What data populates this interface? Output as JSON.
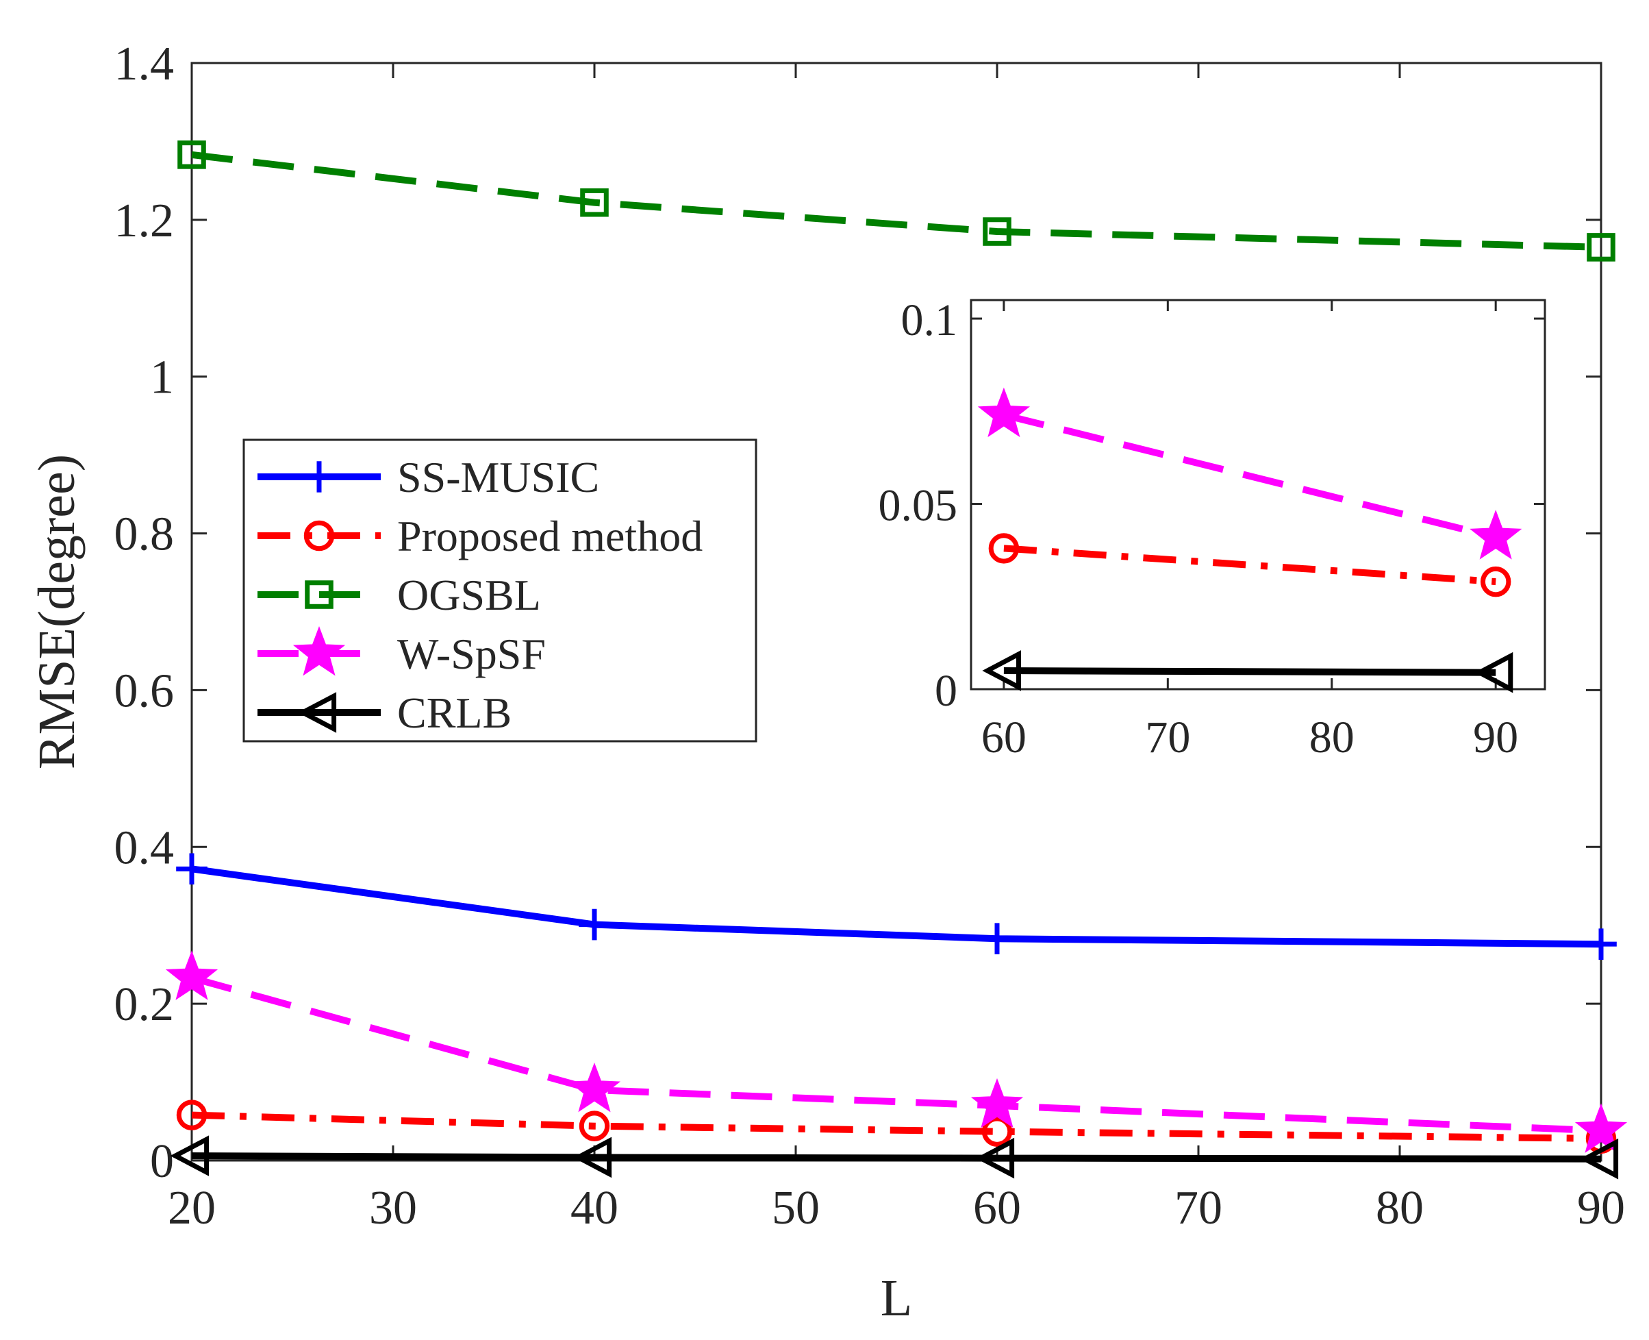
{
  "chart_data": [
    {
      "type": "line",
      "title": "",
      "xlabel": "L",
      "ylabel": "RMSE(degree)",
      "xlim": [
        20,
        90
      ],
      "ylim": [
        0,
        1.4
      ],
      "xticks": [
        20,
        30,
        40,
        50,
        60,
        70,
        80,
        90
      ],
      "yticks": [
        0,
        0.2,
        0.4,
        0.6,
        0.8,
        1,
        1.2,
        1.4
      ],
      "xtick_labels": [
        "20",
        "30",
        "40",
        "50",
        "60",
        "70",
        "80",
        "90"
      ],
      "ytick_labels": [
        "0",
        "0.2",
        "0.4",
        "0.6",
        "0.8",
        "1",
        "1.2",
        "1.4"
      ],
      "grid": false,
      "legend": "center-left",
      "x": [
        20,
        40,
        60,
        90
      ],
      "series": [
        {
          "name": "SS-MUSIC",
          "color": "#0000ff",
          "dash": "solid",
          "marker": "plus",
          "values": [
            0.372,
            0.301,
            0.283,
            0.276
          ]
        },
        {
          "name": "Proposed method",
          "color": "#ff0000",
          "dash": "dashdot",
          "marker": "circle",
          "values": [
            0.058,
            0.044,
            0.037,
            0.028
          ]
        },
        {
          "name": "OGSBL",
          "color": "#007f00",
          "dash": "dashed",
          "marker": "square",
          "values": [
            1.283,
            1.222,
            1.185,
            1.165
          ]
        },
        {
          "name": "W-SpSF",
          "color": "#ff00ff",
          "dash": "dashed",
          "marker": "star",
          "values": [
            0.233,
            0.09,
            0.07,
            0.038
          ]
        },
        {
          "name": "CRLB",
          "color": "#000000",
          "dash": "solid",
          "marker": "triangle-left",
          "values": [
            0.006,
            0.004,
            0.003,
            0.002
          ]
        }
      ]
    },
    {
      "type": "line",
      "title": "",
      "inset": true,
      "xlim": [
        58,
        93
      ],
      "ylim": [
        0,
        0.105
      ],
      "xticks": [
        60,
        70,
        80,
        90
      ],
      "yticks": [
        0,
        0.05,
        0.1
      ],
      "xtick_labels": [
        "60",
        "70",
        "80",
        "90"
      ],
      "ytick_labels": [
        "0",
        "0.05",
        "0.1"
      ],
      "x": [
        60,
        90
      ],
      "series": [
        {
          "name": "Proposed method",
          "color": "#ff0000",
          "dash": "dashdot",
          "marker": "circle",
          "values": [
            0.038,
            0.029
          ]
        },
        {
          "name": "W-SpSF",
          "color": "#ff00ff",
          "dash": "dashed",
          "marker": "star",
          "values": [
            0.074,
            0.041
          ]
        },
        {
          "name": "CRLB",
          "color": "#000000",
          "dash": "solid",
          "marker": "triangle-left",
          "values": [
            0.005,
            0.0045
          ]
        }
      ]
    }
  ]
}
